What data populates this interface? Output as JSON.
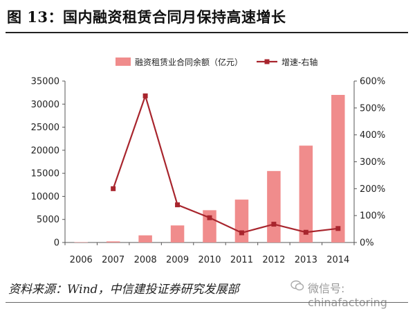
{
  "header": {
    "title": "图 13：国内融资租赁合同月保持高速增长"
  },
  "footer": {
    "source": "资料来源：Wind，中信建投证券研究发展部",
    "watermark": "微信号: chinafactoring"
  },
  "colors": {
    "bar": "#f08c8c",
    "line": "#a8252d",
    "axis": "#555555",
    "text": "#222222"
  },
  "chart_data": {
    "type": "bar",
    "title": "",
    "categories": [
      "2006",
      "2007",
      "2008",
      "2009",
      "2010",
      "2011",
      "2012",
      "2013",
      "2014"
    ],
    "series": [
      {
        "name": "融资租赁业合同余额（亿元）",
        "type": "bar",
        "axis": "left",
        "values": [
          80,
          240,
          1550,
          3700,
          7000,
          9300,
          15500,
          21000,
          32000
        ]
      },
      {
        "name": "增速-右轴",
        "type": "line",
        "axis": "right",
        "values": [
          null,
          200,
          545,
          140,
          92,
          36,
          68,
          38,
          52
        ]
      }
    ],
    "y_left": {
      "lim": [
        0,
        35000
      ],
      "ticks": [
        "0",
        "5000",
        "10000",
        "15000",
        "20000",
        "25000",
        "30000",
        "35000"
      ]
    },
    "y_right": {
      "lim": [
        0,
        600
      ],
      "ticks": [
        "0%",
        "100%",
        "200%",
        "300%",
        "400%",
        "500%",
        "600%"
      ]
    },
    "legend": "top",
    "grid": false
  }
}
